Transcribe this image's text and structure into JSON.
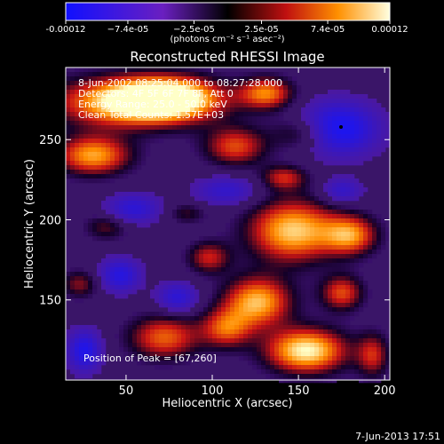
{
  "chart_data": {
    "type": "heatmap",
    "title": "Reconstructed RHESSI Image",
    "xlabel": "Heliocentric X (arcsec)",
    "ylabel": "Heliocentric Y (arcsec)",
    "xlim": [
      15,
      203
    ],
    "ylim": [
      100,
      295
    ],
    "x_ticks": [
      50,
      100,
      150,
      200
    ],
    "x_tick_labels": [
      "50",
      "100",
      "150",
      "200"
    ],
    "y_ticks": [
      150,
      200,
      250
    ],
    "y_tick_labels": [
      "150",
      "200",
      "250"
    ],
    "colorbar": {
      "range": [
        -0.00012,
        0.00012
      ],
      "tick_values": [
        -0.00012,
        -7.4e-05,
        -2.5e-05,
        2.5e-05,
        7.4e-05,
        0.00012
      ],
      "tick_labels": [
        "-0.00012",
        "−7.4e-05",
        "−2.5e-05",
        "2.5e-05",
        "7.4e-05",
        "0.00012"
      ],
      "unit_label": "(photons cm⁻² s⁻¹ asec⁻²)"
    },
    "annotations": [
      "8-Jun-2002 08:25:04.000 to 08:27:28.000",
      "Detectors: 4F 5F 6F 7F 8F, Att 0",
      "Energy Range: 25.0 - 50.0 keV",
      "Clean    Total Counts: 1.57E+03"
    ],
    "peak_label": "Position of Peak = [67,260]",
    "peak_position": [
      67,
      260
    ],
    "timestamp": "7-Jun-2013 17:51",
    "grid": false,
    "legend": "none"
  }
}
